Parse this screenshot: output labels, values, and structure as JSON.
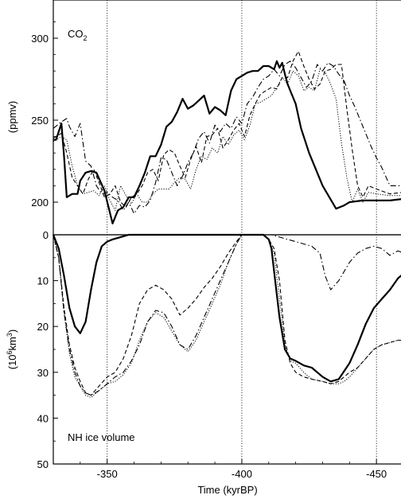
{
  "figure": {
    "x_label": "Time (kyrBP)",
    "co2_ylabel": "(ppmv)",
    "ice_ylabel_a": "(10",
    "ice_ylabel_sup": "6",
    "ice_ylabel_b": "km",
    "ice_ylabel_sup2": "3",
    "ice_ylabel_c": ")",
    "co2_label": "CO",
    "co2_label_sub": "2",
    "ice_label": "NH ice volume"
  },
  "chart_data": [
    {
      "type": "line",
      "panel": "co2",
      "title": "CO2",
      "xlabel": "Time (kyrBP)",
      "ylabel": "(ppmv)",
      "xlim": [
        -330,
        -460
      ],
      "ylim": [
        190,
        322
      ],
      "yticks": [
        200,
        250,
        300
      ],
      "xticks": [
        -350,
        -400,
        -450
      ],
      "vlines": [
        -350,
        -400,
        -450
      ],
      "grid": false,
      "series": [
        {
          "style": "solid-thick",
          "x": [
            -330,
            -331,
            -333,
            -334,
            -335,
            -337,
            -339,
            -340,
            -342,
            -344,
            -346,
            -349,
            -352,
            -354,
            -356,
            -358,
            -360,
            -362,
            -364,
            -366,
            -368,
            -370,
            -372,
            -374,
            -376,
            -378,
            -380,
            -382,
            -384,
            -386,
            -388,
            -390,
            -392,
            -394,
            -396,
            -398,
            -400,
            -402,
            -404,
            -406,
            -408,
            -410,
            -412,
            -413,
            -414,
            -415,
            -416,
            -417,
            -418,
            -420,
            -422,
            -425,
            -430,
            -435,
            -438,
            -440,
            -445,
            -450,
            -455,
            -460
          ],
          "y": [
            238,
            238,
            248,
            228,
            203,
            205,
            205,
            213,
            218,
            219,
            218,
            207,
            187,
            195,
            197,
            203,
            203,
            210,
            218,
            228,
            228,
            235,
            246,
            249,
            255,
            263,
            257,
            259,
            262,
            265,
            254,
            258,
            256,
            253,
            268,
            275,
            277,
            279,
            280,
            280,
            283,
            283,
            281,
            286,
            282,
            285,
            278,
            272,
            268,
            260,
            245,
            230,
            210,
            196,
            198,
            200,
            201,
            201,
            201,
            202
          ]
        },
        {
          "style": "dash-dot",
          "x": [
            -330,
            -333,
            -335,
            -336,
            -338,
            -340,
            -342,
            -344,
            -346,
            -348,
            -350,
            -352,
            -354,
            -356,
            -358,
            -360,
            -362,
            -364,
            -366,
            -368,
            -370,
            -372,
            -374,
            -376,
            -378,
            -380,
            -382,
            -384,
            -386,
            -388,
            -390,
            -392,
            -394,
            -396,
            -398,
            -400,
            -402,
            -404,
            -406,
            -408,
            -410,
            -412,
            -414,
            -416,
            -418,
            -420,
            -422,
            -424,
            -426,
            -428,
            -430,
            -432,
            -434,
            -436,
            -438,
            -440,
            -442,
            -444,
            -446,
            -448,
            -450,
            -452,
            -455,
            -460
          ],
          "y": [
            245,
            249,
            251,
            246,
            240,
            248,
            225,
            222,
            210,
            205,
            206,
            203,
            201,
            195,
            200,
            193,
            198,
            197,
            201,
            212,
            227,
            226,
            218,
            210,
            216,
            224,
            230,
            239,
            243,
            236,
            247,
            243,
            248,
            245,
            252,
            248,
            260,
            264,
            270,
            275,
            277,
            281,
            277,
            284,
            286,
            282,
            276,
            270,
            274,
            284,
            280,
            285,
            283,
            278,
            274,
            265,
            258,
            250,
            242,
            234,
            227,
            221,
            210,
            210
          ]
        },
        {
          "style": "dashed",
          "x": [
            -330,
            -333,
            -335,
            -337,
            -339,
            -341,
            -343,
            -345,
            -347,
            -349,
            -351,
            -353,
            -355,
            -357,
            -359,
            -361,
            -363,
            -365,
            -367,
            -369,
            -371,
            -373,
            -375,
            -377,
            -379,
            -381,
            -383,
            -385,
            -387,
            -389,
            -391,
            -393,
            -395,
            -397,
            -399,
            -401,
            -403,
            -405,
            -407,
            -409,
            -411,
            -413,
            -415,
            -417,
            -419,
            -421,
            -423,
            -425,
            -427,
            -429,
            -431,
            -433,
            -435,
            -437,
            -439,
            -441,
            -443,
            -445,
            -447,
            -450,
            -455,
            -460
          ],
          "y": [
            239,
            242,
            230,
            215,
            210,
            205,
            214,
            220,
            212,
            203,
            205,
            210,
            200,
            197,
            203,
            205,
            210,
            218,
            220,
            213,
            229,
            232,
            230,
            222,
            215,
            226,
            234,
            224,
            240,
            241,
            245,
            233,
            238,
            244,
            248,
            240,
            253,
            260,
            266,
            268,
            270,
            269,
            276,
            276,
            286,
            292,
            283,
            275,
            269,
            272,
            280,
            281,
            284,
            284,
            257,
            232,
            210,
            203,
            210,
            208,
            205,
            206
          ]
        },
        {
          "style": "dotted",
          "x": [
            -330,
            -333,
            -335,
            -337,
            -339,
            -341,
            -343,
            -345,
            -347,
            -349,
            -351,
            -353,
            -355,
            -357,
            -359,
            -361,
            -363,
            -365,
            -367,
            -369,
            -371,
            -373,
            -375,
            -377,
            -379,
            -381,
            -383,
            -385,
            -387,
            -389,
            -391,
            -393,
            -395,
            -397,
            -399,
            -401,
            -403,
            -405,
            -407,
            -409,
            -411,
            -413,
            -415,
            -417,
            -419,
            -421,
            -423,
            -425,
            -427,
            -429,
            -431,
            -433,
            -435,
            -437,
            -439,
            -441,
            -443,
            -445,
            -447,
            -450,
            -455,
            -460
          ],
          "y": [
            237,
            240,
            238,
            222,
            210,
            205,
            206,
            207,
            204,
            210,
            201,
            195,
            210,
            204,
            199,
            205,
            200,
            200,
            205,
            208,
            208,
            208,
            212,
            215,
            214,
            208,
            220,
            228,
            226,
            233,
            230,
            240,
            235,
            241,
            244,
            238,
            247,
            260,
            261,
            263,
            265,
            270,
            276,
            272,
            280,
            277,
            268,
            270,
            268,
            281,
            279,
            272,
            263,
            236,
            215,
            200,
            208,
            200,
            206,
            205,
            204,
            204
          ]
        }
      ]
    },
    {
      "type": "line",
      "panel": "ice",
      "title": "NH ice volume",
      "xlabel": "Time (kyrBP)",
      "ylabel": "(10^6 km^3)",
      "xlim": [
        -330,
        -460
      ],
      "ylim": [
        50,
        0
      ],
      "yticks": [
        0,
        10,
        20,
        30,
        40,
        50
      ],
      "xticks": [
        -350,
        -400,
        -450
      ],
      "vlines": [
        -350,
        -400,
        -450
      ],
      "grid": false,
      "series": [
        {
          "style": "solid-thick",
          "x": [
            -330,
            -332,
            -334,
            -336,
            -338,
            -340,
            -342,
            -344,
            -346,
            -348,
            -350,
            -352,
            -355,
            -358,
            -361,
            -364,
            -367,
            -370,
            -380,
            -390,
            -400,
            -405,
            -408,
            -410,
            -411,
            -412,
            -414,
            -416,
            -418,
            -420,
            -423,
            -426,
            -430,
            -433,
            -436,
            -440,
            -443,
            -446,
            -449,
            -452,
            -455,
            -458,
            -460
          ],
          "y": [
            0,
            3,
            9,
            16,
            20,
            21.5,
            19,
            12,
            6,
            2.5,
            1.5,
            1,
            0.5,
            0,
            0,
            0,
            0,
            0,
            0,
            0,
            0,
            0,
            0,
            1,
            3,
            8,
            18,
            25,
            27,
            27.5,
            28.5,
            29,
            31,
            32,
            31.5,
            28,
            24,
            19.5,
            16,
            14,
            12,
            9.5,
            8.5
          ]
        },
        {
          "style": "dashed",
          "x": [
            -330,
            -332,
            -334,
            -336,
            -338,
            -340,
            -342,
            -344,
            -347,
            -350,
            -353,
            -356,
            -359,
            -362,
            -365,
            -368,
            -371,
            -374,
            -377,
            -380,
            -383,
            -386,
            -389,
            -392,
            -395,
            -398,
            -400,
            -402,
            -405,
            -408,
            -410,
            -412,
            -414,
            -416,
            -418,
            -420,
            -423,
            -426,
            -430,
            -433,
            -436,
            -440,
            -443,
            -446,
            -449,
            -452,
            -455,
            -458,
            -460
          ],
          "y": [
            0,
            5,
            16,
            24,
            29,
            32,
            34.5,
            35,
            33,
            31,
            30,
            27,
            22,
            15,
            12,
            11,
            12,
            14,
            17.5,
            16,
            14,
            11.5,
            9.5,
            7,
            4,
            1.5,
            0,
            0,
            0,
            0,
            1,
            3,
            10,
            23,
            28,
            30,
            31,
            31.5,
            32,
            32.5,
            32,
            30,
            29,
            27,
            25,
            24,
            23.5,
            23,
            23
          ]
        },
        {
          "style": "dotted",
          "x": [
            -330,
            -332,
            -334,
            -336,
            -338,
            -340,
            -342,
            -344,
            -347,
            -350,
            -353,
            -356,
            -359,
            -362,
            -365,
            -368,
            -371,
            -374,
            -377,
            -380,
            -383,
            -386,
            -389,
            -392,
            -395,
            -398,
            -400,
            -402,
            -405,
            -408,
            -410,
            -412,
            -414,
            -416,
            -418,
            -420,
            -423,
            -426,
            -430,
            -433,
            -436,
            -438,
            -440,
            -443,
            -446,
            -449,
            -452,
            -455,
            -458,
            -460
          ],
          "y": [
            0,
            5,
            17,
            26,
            31,
            33,
            35,
            35.5,
            34,
            32.5,
            32,
            30.5,
            28,
            23,
            19,
            17,
            18,
            21,
            24,
            25.5,
            23,
            19,
            15,
            11,
            6,
            2,
            0,
            0,
            0,
            0,
            1,
            4,
            14,
            24,
            27.5,
            28,
            30,
            31.5,
            32,
            32.5,
            32.5,
            32,
            31,
            29,
            27,
            25,
            24,
            23.5,
            23,
            23
          ]
        },
        {
          "style": "dash-dot",
          "x": [
            -330,
            -332,
            -334,
            -336,
            -338,
            -340,
            -342,
            -344,
            -347,
            -350,
            -353,
            -356,
            -359,
            -362,
            -365,
            -368,
            -371,
            -374,
            -377,
            -380,
            -383,
            -386,
            -389,
            -392,
            -395,
            -398,
            -400,
            -402,
            -405,
            -408,
            -411,
            -414,
            -417,
            -420,
            -423,
            -426,
            -429,
            -431,
            -433,
            -436,
            -440,
            -443,
            -446,
            -449,
            -452,
            -455,
            -458,
            -460
          ],
          "y": [
            0,
            5,
            17,
            25,
            30,
            33,
            34.5,
            35,
            34,
            32.5,
            31,
            30,
            27.5,
            24,
            19,
            16.5,
            17,
            20,
            24,
            25,
            22,
            18,
            14,
            10,
            6,
            2,
            0,
            0,
            0,
            0,
            0,
            0.5,
            1,
            1.5,
            2,
            2.5,
            4,
            9,
            12,
            10,
            6,
            4,
            3,
            2.5,
            3,
            4.5,
            3.5,
            4
          ]
        }
      ]
    }
  ]
}
